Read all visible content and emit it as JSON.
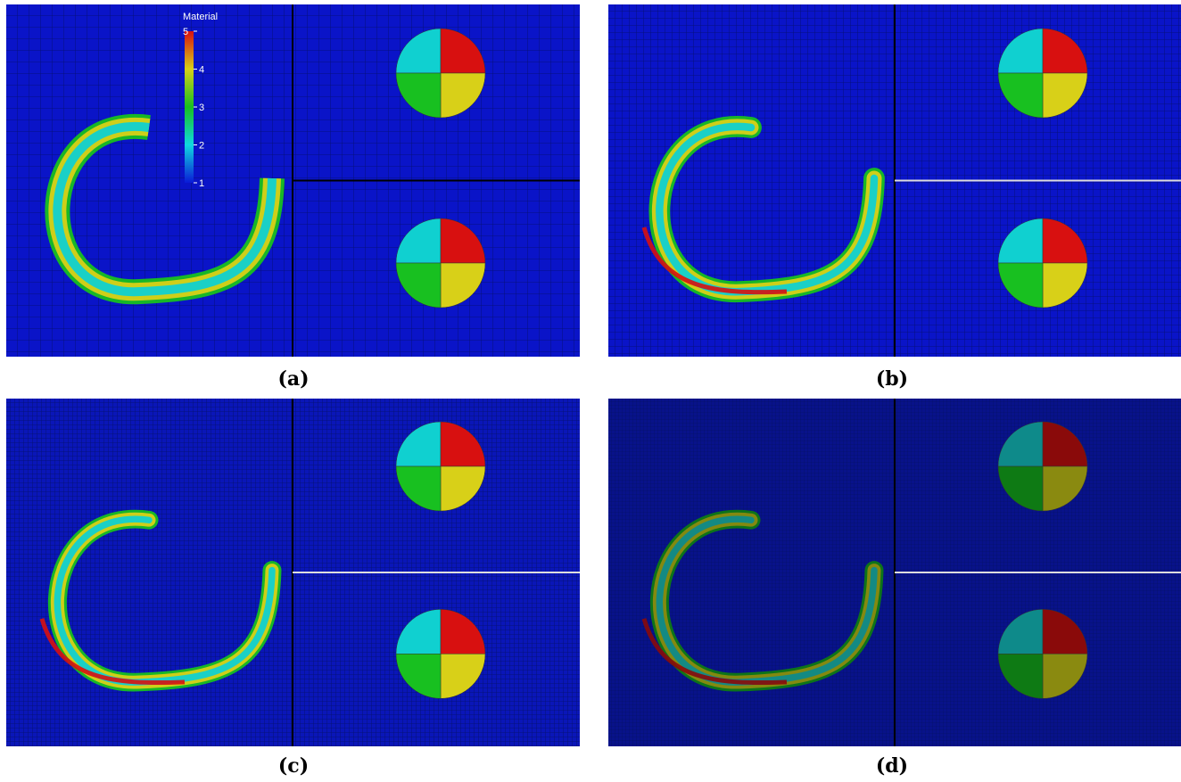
{
  "panels": [
    {
      "label": "(a)"
    },
    {
      "label": "(b)"
    },
    {
      "label": "(c)"
    },
    {
      "label": "(d)"
    }
  ],
  "colorbar": {
    "title": "Material",
    "ticks": [
      1,
      2,
      3,
      4,
      5
    ]
  }
}
